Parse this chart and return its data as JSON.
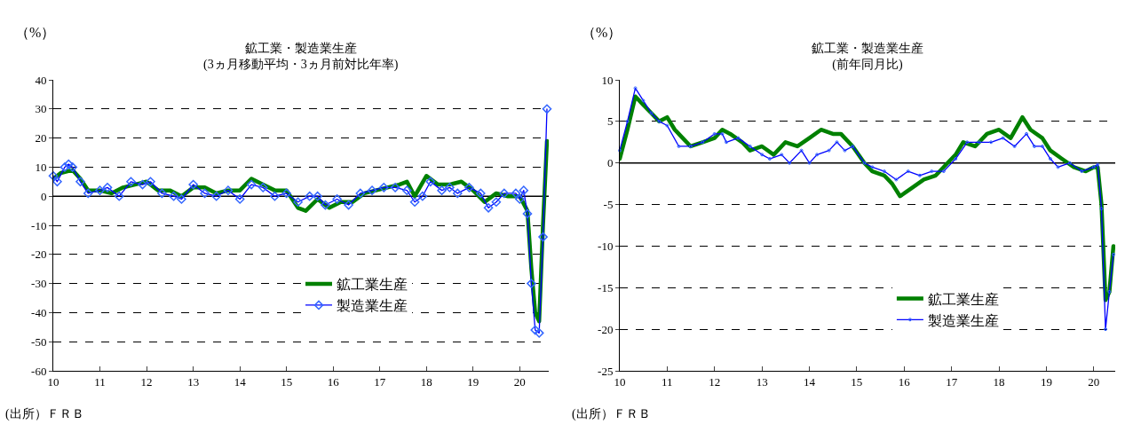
{
  "chart_data": [
    {
      "type": "line",
      "title": "鉱工業・製造業生産",
      "subtitle": "(3ヵ月移動平均・3ヵ月前対比年率)",
      "ylabel": "（%）",
      "annotations": [
        "(出所）ＦＲＢ"
      ],
      "xlim": [
        "2010-01",
        "2020-08-15"
      ],
      "xticks": [
        {
          "value": "2010-01",
          "label": "10"
        },
        {
          "value": "2011-01",
          "label": "11"
        },
        {
          "value": "2012-01",
          "label": "12"
        },
        {
          "value": "2013-01",
          "label": "13"
        },
        {
          "value": "2014-01",
          "label": "14"
        },
        {
          "value": "2015-01",
          "label": "15"
        },
        {
          "value": "2016-01",
          "label": "16"
        },
        {
          "value": "2017-01",
          "label": "17"
        },
        {
          "value": "2018-01",
          "label": "18"
        },
        {
          "value": "2019-01",
          "label": "19"
        },
        {
          "value": "2020-01",
          "label": "20"
        }
      ],
      "ylim": [
        -60,
        40
      ],
      "yticks": [
        -60,
        -50,
        -40,
        -30,
        -20,
        -10,
        0,
        10,
        20,
        30,
        40
      ],
      "grid": "y",
      "legend": "right",
      "ref_lines": [
        {
          "axis": "y",
          "value": 0,
          "color": "#000000",
          "line_style": "solid"
        }
      ],
      "series": [
        {
          "name": "鉱工業生産",
          "color": "#008000",
          "marker": "none",
          "line_style": "solid",
          "x": [
            "2010-01",
            "2010-03",
            "2010-06",
            "2010-08",
            "2010-10",
            "2011-01",
            "2011-04",
            "2011-07",
            "2011-10",
            "2012-01",
            "2012-04",
            "2012-07",
            "2012-10",
            "2013-01",
            "2013-04",
            "2013-07",
            "2013-10",
            "2014-01",
            "2014-04",
            "2014-07",
            "2014-10",
            "2015-01",
            "2015-04",
            "2015-06",
            "2015-09",
            "2015-12",
            "2016-03",
            "2016-06",
            "2016-09",
            "2016-12",
            "2017-03",
            "2017-06",
            "2017-08",
            "2017-10",
            "2018-01",
            "2018-04",
            "2018-07",
            "2018-10",
            "2019-01",
            "2019-04",
            "2019-07",
            "2019-10",
            "2020-01",
            "2020-03",
            "2020-04",
            "2020-05",
            "2020-06",
            "2020-07",
            "2020-08"
          ],
          "values": [
            6,
            8,
            9,
            6,
            2,
            2,
            1,
            3,
            4,
            5,
            2,
            2,
            0,
            3,
            3,
            1,
            2,
            2,
            6,
            4,
            2,
            2,
            -4,
            -5,
            -1,
            -4,
            -2,
            -2,
            1,
            2,
            3,
            4,
            5,
            0,
            7,
            4,
            4,
            5,
            2,
            -2,
            1,
            0,
            0,
            -5,
            -25,
            -40,
            -43,
            -10,
            19
          ]
        },
        {
          "name": "製造業生産",
          "color": "#0000ff",
          "marker": "diamond",
          "line_style": "solid",
          "x": [
            "2010-01",
            "2010-02",
            "2010-04",
            "2010-05",
            "2010-06",
            "2010-08",
            "2010-10",
            "2011-01",
            "2011-03",
            "2011-06",
            "2011-09",
            "2011-12",
            "2012-02",
            "2012-05",
            "2012-08",
            "2012-10",
            "2013-01",
            "2013-04",
            "2013-07",
            "2013-10",
            "2014-01",
            "2014-04",
            "2014-07",
            "2014-10",
            "2015-01",
            "2015-04",
            "2015-07",
            "2015-09",
            "2015-11",
            "2016-02",
            "2016-05",
            "2016-08",
            "2016-11",
            "2017-02",
            "2017-05",
            "2017-08",
            "2017-10",
            "2017-12",
            "2018-02",
            "2018-05",
            "2018-07",
            "2018-09",
            "2018-12",
            "2019-03",
            "2019-05",
            "2019-07",
            "2019-09",
            "2019-12",
            "2020-01",
            "2020-02",
            "2020-03",
            "2020-04",
            "2020-05",
            "2020-06",
            "2020-07",
            "2020-08"
          ],
          "values": [
            7,
            5,
            10,
            11,
            10,
            5,
            1,
            2,
            3,
            0,
            5,
            4,
            5,
            1,
            0,
            -1,
            4,
            1,
            0,
            2,
            -1,
            4,
            3,
            0,
            1,
            -2,
            0,
            0,
            -3,
            -1,
            -3,
            1,
            2,
            3,
            3,
            2,
            -2,
            0,
            5,
            2,
            3,
            1,
            3,
            1,
            -4,
            -2,
            1,
            1,
            -1,
            2,
            -6,
            -30,
            -46,
            -47,
            -14,
            30
          ]
        }
      ]
    },
    {
      "type": "line",
      "title": "鉱工業・製造業生産",
      "subtitle": "(前年同月比)",
      "ylabel": "（%）",
      "annotations": [
        "(出所）ＦＲＢ"
      ],
      "xlim": [
        "2010-01",
        "2020-06-15"
      ],
      "xticks": [
        {
          "value": "2010-01",
          "label": "10"
        },
        {
          "value": "2011-01",
          "label": "11"
        },
        {
          "value": "2012-01",
          "label": "12"
        },
        {
          "value": "2013-01",
          "label": "13"
        },
        {
          "value": "2014-01",
          "label": "14"
        },
        {
          "value": "2015-01",
          "label": "15"
        },
        {
          "value": "2016-01",
          "label": "16"
        },
        {
          "value": "2017-01",
          "label": "17"
        },
        {
          "value": "2018-01",
          "label": "18"
        },
        {
          "value": "2019-01",
          "label": "19"
        },
        {
          "value": "2020-01",
          "label": "20"
        }
      ],
      "ylim": [
        -25,
        10
      ],
      "yticks": [
        -25,
        -20,
        -15,
        -10,
        -5,
        0,
        5,
        10
      ],
      "grid": "y",
      "legend": "bottom right",
      "ref_lines": [
        {
          "axis": "y",
          "value": 0,
          "color": "#000000",
          "line_style": "solid"
        }
      ],
      "series": [
        {
          "name": "鉱工業生産",
          "color": "#008000",
          "marker": "none",
          "line_style": "solid",
          "x": [
            "2010-01",
            "2010-03",
            "2010-05",
            "2010-07",
            "2010-09",
            "2010-11",
            "2011-01",
            "2011-03",
            "2011-05",
            "2011-07",
            "2011-10",
            "2012-01",
            "2012-03",
            "2012-05",
            "2012-08",
            "2012-10",
            "2013-01",
            "2013-04",
            "2013-07",
            "2013-10",
            "2014-01",
            "2014-04",
            "2014-07",
            "2014-09",
            "2014-12",
            "2015-03",
            "2015-05",
            "2015-08",
            "2015-10",
            "2015-12",
            "2016-03",
            "2016-06",
            "2016-09",
            "2016-12",
            "2017-02",
            "2017-04",
            "2017-07",
            "2017-10",
            "2018-01",
            "2018-04",
            "2018-07",
            "2018-09",
            "2018-12",
            "2019-02",
            "2019-05",
            "2019-08",
            "2019-11",
            "2020-01",
            "2020-02",
            "2020-03",
            "2020-04",
            "2020-05",
            "2020-06"
          ],
          "values": [
            0.5,
            4,
            8,
            7,
            6,
            5,
            5.5,
            4,
            3,
            2,
            2.5,
            3,
            4,
            3.5,
            2.5,
            1.5,
            2,
            1,
            2.5,
            2,
            3,
            4,
            3.5,
            3.5,
            2,
            0,
            -1,
            -1.5,
            -2.5,
            -4,
            -3,
            -2,
            -1.5,
            0,
            1,
            2.5,
            2,
            3.5,
            4,
            3,
            5.5,
            4,
            3,
            1.5,
            0.5,
            -0.5,
            -1,
            -0.5,
            -0.5,
            -5,
            -16.5,
            -15.5,
            -10
          ]
        },
        {
          "name": "製造業生産",
          "color": "#0000ff",
          "marker": "circle",
          "line_style": "solid",
          "x": [
            "2010-01",
            "2010-03",
            "2010-05",
            "2010-07",
            "2010-09",
            "2010-11",
            "2011-01",
            "2011-04",
            "2011-07",
            "2011-10",
            "2012-01",
            "2012-03",
            "2012-04",
            "2012-07",
            "2012-10",
            "2013-01",
            "2013-03",
            "2013-06",
            "2013-08",
            "2013-11",
            "2014-01",
            "2014-03",
            "2014-06",
            "2014-08",
            "2014-10",
            "2014-12",
            "2015-03",
            "2015-05",
            "2015-08",
            "2015-11",
            "2016-02",
            "2016-05",
            "2016-08",
            "2016-11",
            "2017-02",
            "2017-05",
            "2017-08",
            "2017-11",
            "2018-02",
            "2018-05",
            "2018-08",
            "2018-10",
            "2018-12",
            "2019-02",
            "2019-04",
            "2019-07",
            "2019-10",
            "2020-01",
            "2020-02",
            "2020-03",
            "2020-04",
            "2020-05",
            "2020-06"
          ],
          "values": [
            1.5,
            5,
            9,
            7.5,
            6,
            5,
            4.5,
            2,
            2,
            2.5,
            3.5,
            3.5,
            2.5,
            3,
            2,
            1,
            0.5,
            1,
            0,
            1.5,
            0,
            1,
            1.5,
            2.5,
            1.5,
            2,
            0,
            -0.5,
            -1,
            -2,
            -1,
            -1.5,
            -1,
            -1,
            0.5,
            2.5,
            2.5,
            2.5,
            3,
            2,
            3.5,
            2,
            2,
            0.5,
            -0.5,
            0,
            -1,
            -0.5,
            -0.2,
            -5.5,
            -20,
            -15.5,
            -11
          ]
        }
      ]
    }
  ]
}
